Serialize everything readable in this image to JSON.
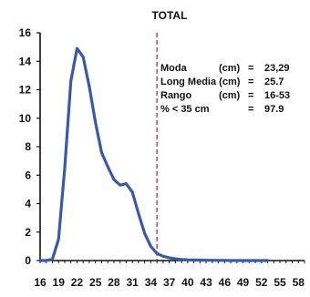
{
  "chart_data": {
    "type": "line",
    "title": "TOTAL",
    "xlabel": "",
    "ylabel": "",
    "ylim": [
      0,
      16
    ],
    "xlim": [
      16,
      59
    ],
    "y_ticks": [
      0,
      2,
      4,
      6,
      8,
      10,
      12,
      14,
      16
    ],
    "x_ticks": [
      16,
      19,
      22,
      25,
      28,
      31,
      34,
      37,
      40,
      43,
      46,
      49,
      52,
      55,
      58
    ],
    "grid": false,
    "legend": "none",
    "series": [
      {
        "color": "#3a5aa8",
        "x": [
          16,
          17,
          18,
          19,
          20,
          21,
          22,
          23,
          24,
          25,
          26,
          27,
          28,
          29,
          30,
          31,
          32,
          33,
          34,
          35,
          36,
          37,
          38,
          39,
          40,
          41,
          42,
          43,
          44,
          45,
          46,
          47,
          48,
          49,
          50,
          51,
          52,
          53
        ],
        "y": [
          0,
          0,
          0.1,
          1.5,
          6.5,
          12.6,
          14.9,
          14.3,
          12.2,
          9.7,
          7.6,
          6.6,
          5.7,
          5.3,
          5.4,
          4.8,
          3.3,
          1.9,
          1.0,
          0.5,
          0.3,
          0.2,
          0.12,
          0.08,
          0.05,
          0.04,
          0.03,
          0.02,
          0.02,
          0.01,
          0.01,
          0,
          0,
          0,
          0,
          0,
          0,
          0
        ]
      }
    ],
    "reference_line": {
      "x": 35,
      "color": "#c0283a",
      "style": "dashed"
    },
    "stats": [
      {
        "label": "Moda",
        "unit": "(cm)",
        "eq": "=",
        "value": "23,29"
      },
      {
        "label": "Long Media (cm)",
        "unit": "",
        "eq": "=",
        "value": "25.7"
      },
      {
        "label": "Rango",
        "unit": "(cm)",
        "eq": "=",
        "value": "16-53"
      },
      {
        "label": "% < 35 cm",
        "unit": "",
        "eq": "=",
        "value": "97.9"
      }
    ]
  }
}
